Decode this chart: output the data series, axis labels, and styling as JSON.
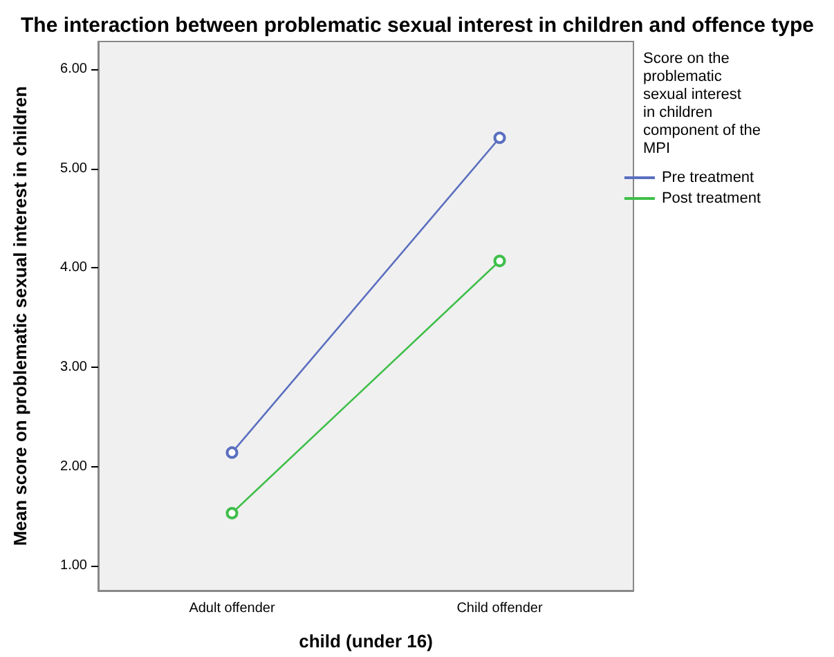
{
  "chart_data": {
    "type": "line",
    "title": "The interaction between problematic sexual interest in children and offence type",
    "xlabel": "child (under 16)",
    "ylabel": "Mean score on problematic sexual interest in children",
    "legend_title": "Score on the problematic sexual interest in children component of the MPI",
    "categories": [
      "Adult offender",
      "Child offender"
    ],
    "series": [
      {
        "name": "Pre treatment",
        "color": "#5b6fc0",
        "values": [
          2.14,
          5.31
        ]
      },
      {
        "name": "Post treatment",
        "color": "#3fbf4a",
        "values": [
          1.53,
          4.07
        ]
      }
    ],
    "ylim": [
      0.75,
      6.28
    ],
    "yticks": [
      {
        "value": 1,
        "label": "1.00"
      },
      {
        "value": 2,
        "label": "2.00"
      },
      {
        "value": 3,
        "label": "3.00"
      },
      {
        "value": 4,
        "label": "4.00"
      },
      {
        "value": 5,
        "label": "5.00"
      },
      {
        "value": 6,
        "label": "6.00"
      }
    ],
    "grid": false,
    "legend": "right",
    "marker": "circle",
    "line_style": "solid"
  }
}
